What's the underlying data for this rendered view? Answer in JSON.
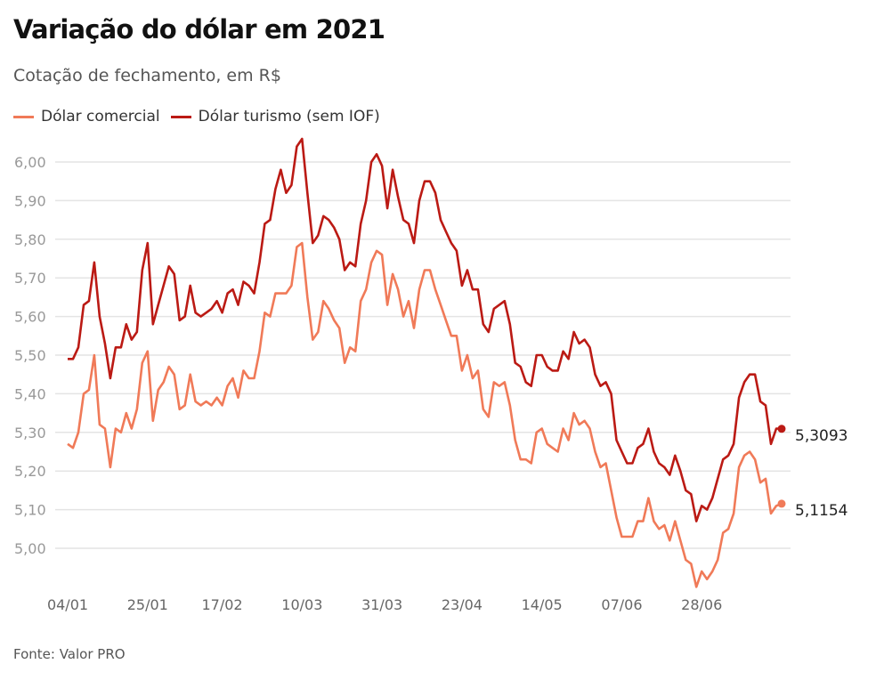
{
  "header": {
    "title": "Variação do dólar em 2021",
    "subtitle": "Cotação de fechamento, em R$"
  },
  "legend": [
    {
      "label": "Dólar comercial",
      "color": "#f07a58"
    },
    {
      "label": "Dólar turismo (sem IOF)",
      "color": "#bb1a14"
    }
  ],
  "footer": {
    "source": "Fonte: Valor PRO"
  },
  "chart_data": {
    "type": "line",
    "title": "Variação do dólar em 2021",
    "subtitle": "Cotação de fechamento, em R$",
    "xlabel": "",
    "ylabel": "",
    "ylim": [
      4.9,
      6.06
    ],
    "yticks": [
      5.0,
      5.1,
      5.2,
      5.3,
      5.4,
      5.5,
      5.6,
      5.7,
      5.8,
      5.9,
      6.0
    ],
    "ytick_labels": [
      "5,00",
      "5,10",
      "5,20",
      "5,30",
      "5,40",
      "5,50",
      "5,60",
      "5,70",
      "5,80",
      "5,90",
      "6,00"
    ],
    "xtick_labels": [
      "04/01",
      "25/01",
      "17/02",
      "10/03",
      "31/03",
      "23/04",
      "14/05",
      "07/06",
      "28/06"
    ],
    "xtick_index": [
      0,
      15,
      29,
      44,
      59,
      74,
      89,
      104,
      119
    ],
    "grid": true,
    "legend_position": "top-left",
    "series": [
      {
        "name": "Dólar comercial",
        "color": "#f07a58",
        "end_label": "5,1154",
        "values": [
          5.27,
          5.26,
          5.3,
          5.4,
          5.41,
          5.5,
          5.32,
          5.31,
          5.21,
          5.31,
          5.3,
          5.35,
          5.31,
          5.36,
          5.48,
          5.51,
          5.33,
          5.41,
          5.43,
          5.47,
          5.45,
          5.36,
          5.37,
          5.45,
          5.38,
          5.37,
          5.38,
          5.37,
          5.39,
          5.37,
          5.42,
          5.44,
          5.39,
          5.46,
          5.44,
          5.44,
          5.51,
          5.61,
          5.6,
          5.66,
          5.66,
          5.66,
          5.68,
          5.78,
          5.79,
          5.65,
          5.54,
          5.56,
          5.64,
          5.62,
          5.59,
          5.57,
          5.48,
          5.52,
          5.51,
          5.64,
          5.67,
          5.74,
          5.77,
          5.76,
          5.63,
          5.71,
          5.67,
          5.6,
          5.64,
          5.57,
          5.67,
          5.72,
          5.72,
          5.67,
          5.63,
          5.59,
          5.55,
          5.55,
          5.46,
          5.5,
          5.44,
          5.46,
          5.36,
          5.34,
          5.43,
          5.42,
          5.43,
          5.37,
          5.28,
          5.23,
          5.23,
          5.22,
          5.3,
          5.31,
          5.27,
          5.26,
          5.25,
          5.31,
          5.28,
          5.35,
          5.32,
          5.33,
          5.31,
          5.25,
          5.21,
          5.22,
          5.15,
          5.08,
          5.03,
          5.03,
          5.03,
          5.07,
          5.07,
          5.13,
          5.07,
          5.05,
          5.06,
          5.02,
          5.07,
          5.02,
          4.97,
          4.96,
          4.9,
          4.94,
          4.92,
          4.94,
          4.97,
          5.04,
          5.05,
          5.09,
          5.21,
          5.24,
          5.25,
          5.23,
          5.17,
          5.18,
          5.09,
          5.11,
          5.1154
        ]
      },
      {
        "name": "Dólar turismo (sem IOF)",
        "color": "#bb1a14",
        "end_label": "5,3093",
        "values": [
          5.49,
          5.49,
          5.52,
          5.63,
          5.64,
          5.74,
          5.6,
          5.53,
          5.44,
          5.52,
          5.52,
          5.58,
          5.54,
          5.56,
          5.72,
          5.79,
          5.58,
          5.63,
          5.68,
          5.73,
          5.71,
          5.59,
          5.6,
          5.68,
          5.61,
          5.6,
          5.61,
          5.62,
          5.64,
          5.61,
          5.66,
          5.67,
          5.63,
          5.69,
          5.68,
          5.66,
          5.74,
          5.84,
          5.85,
          5.93,
          5.98,
          5.92,
          5.94,
          6.04,
          6.06,
          5.92,
          5.79,
          5.81,
          5.86,
          5.85,
          5.83,
          5.8,
          5.72,
          5.74,
          5.73,
          5.84,
          5.9,
          6.0,
          6.02,
          5.99,
          5.88,
          5.98,
          5.91,
          5.85,
          5.84,
          5.79,
          5.9,
          5.95,
          5.95,
          5.92,
          5.85,
          5.82,
          5.79,
          5.77,
          5.68,
          5.72,
          5.67,
          5.67,
          5.58,
          5.56,
          5.62,
          5.63,
          5.64,
          5.58,
          5.48,
          5.47,
          5.43,
          5.42,
          5.5,
          5.5,
          5.47,
          5.46,
          5.46,
          5.51,
          5.49,
          5.56,
          5.53,
          5.54,
          5.52,
          5.45,
          5.42,
          5.43,
          5.4,
          5.28,
          5.25,
          5.22,
          5.22,
          5.26,
          5.27,
          5.31,
          5.25,
          5.22,
          5.21,
          5.19,
          5.24,
          5.2,
          5.15,
          5.14,
          5.07,
          5.11,
          5.1,
          5.13,
          5.18,
          5.23,
          5.24,
          5.27,
          5.39,
          5.43,
          5.45,
          5.45,
          5.38,
          5.37,
          5.27,
          5.31,
          5.3093
        ]
      }
    ]
  }
}
